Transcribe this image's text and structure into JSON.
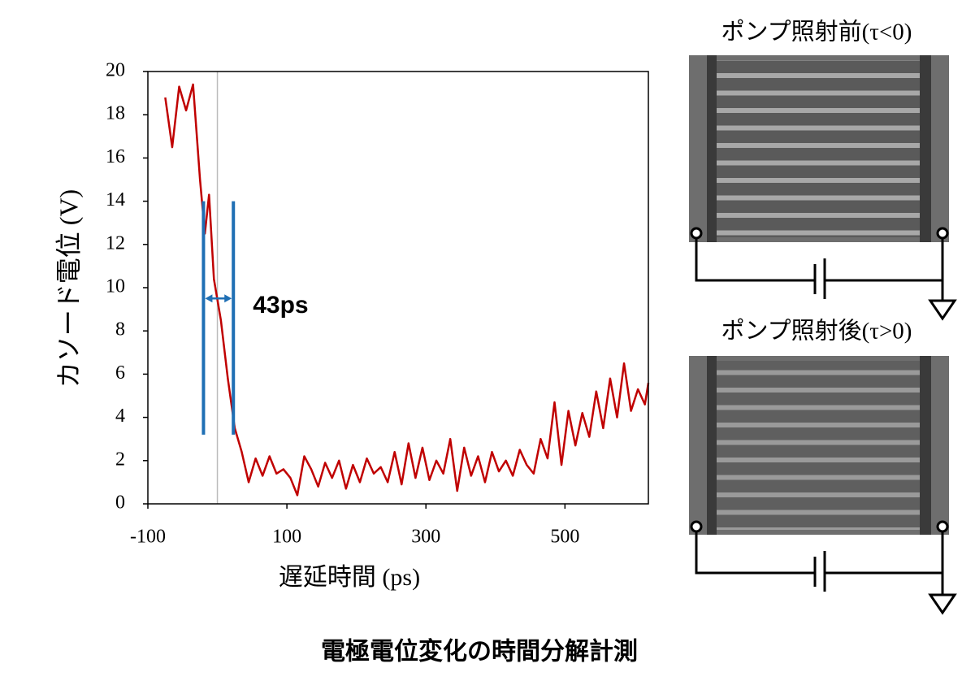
{
  "chart_data": {
    "type": "line",
    "title": "電極電位変化の時間分解計測",
    "xlabel": "遅延時間 (ps)",
    "ylabel": "カソード電位 (V)",
    "xlim": [
      -100,
      620
    ],
    "ylim": [
      0,
      20
    ],
    "xticks": [
      -100,
      100,
      300,
      500
    ],
    "yticks": [
      0,
      2,
      4,
      6,
      8,
      10,
      12,
      14,
      16,
      18,
      20
    ],
    "reference_x": 0,
    "x": [
      -75,
      -65,
      -55,
      -45,
      -35,
      -25,
      -18,
      -12,
      -5,
      5,
      15,
      25,
      35,
      45,
      55,
      65,
      75,
      85,
      95,
      105,
      115,
      125,
      135,
      145,
      155,
      165,
      175,
      185,
      195,
      205,
      215,
      225,
      235,
      245,
      255,
      265,
      275,
      285,
      295,
      305,
      315,
      325,
      335,
      345,
      355,
      365,
      375,
      385,
      395,
      405,
      415,
      425,
      435,
      445,
      455,
      465,
      475,
      485,
      495,
      505,
      515,
      525,
      535,
      545,
      555,
      565,
      575,
      585,
      595,
      605,
      615,
      620
    ],
    "series": [
      {
        "color": "#c00000",
        "values": [
          18.8,
          16.5,
          19.3,
          18.2,
          19.4,
          15.0,
          12.5,
          14.3,
          10.4,
          8.5,
          5.8,
          3.5,
          2.4,
          1.0,
          2.1,
          1.3,
          2.2,
          1.4,
          1.6,
          1.2,
          0.4,
          2.2,
          1.6,
          0.8,
          1.9,
          1.2,
          2.0,
          0.7,
          1.8,
          1.0,
          2.1,
          1.4,
          1.7,
          1.0,
          2.4,
          0.9,
          2.8,
          1.2,
          2.6,
          1.1,
          2.0,
          1.4,
          3.0,
          0.6,
          2.6,
          1.3,
          2.2,
          1.0,
          2.4,
          1.5,
          2.0,
          1.3,
          2.5,
          1.8,
          1.4,
          3.0,
          2.1,
          4.7,
          1.8,
          4.3,
          2.7,
          4.2,
          3.1,
          5.2,
          3.5,
          5.8,
          4.0,
          6.5,
          4.3,
          5.3,
          4.6,
          5.6
        ]
      }
    ],
    "interval": {
      "x": [
        -20,
        23
      ],
      "y": [
        3.2,
        14
      ],
      "arrow_y": 9.5,
      "label": "43ps",
      "color": "#1f6fb4"
    }
  },
  "panels": [
    {
      "label": "ポンプ照射前(τ<0)"
    },
    {
      "label": "ポンプ照射後(τ>0)"
    }
  ]
}
